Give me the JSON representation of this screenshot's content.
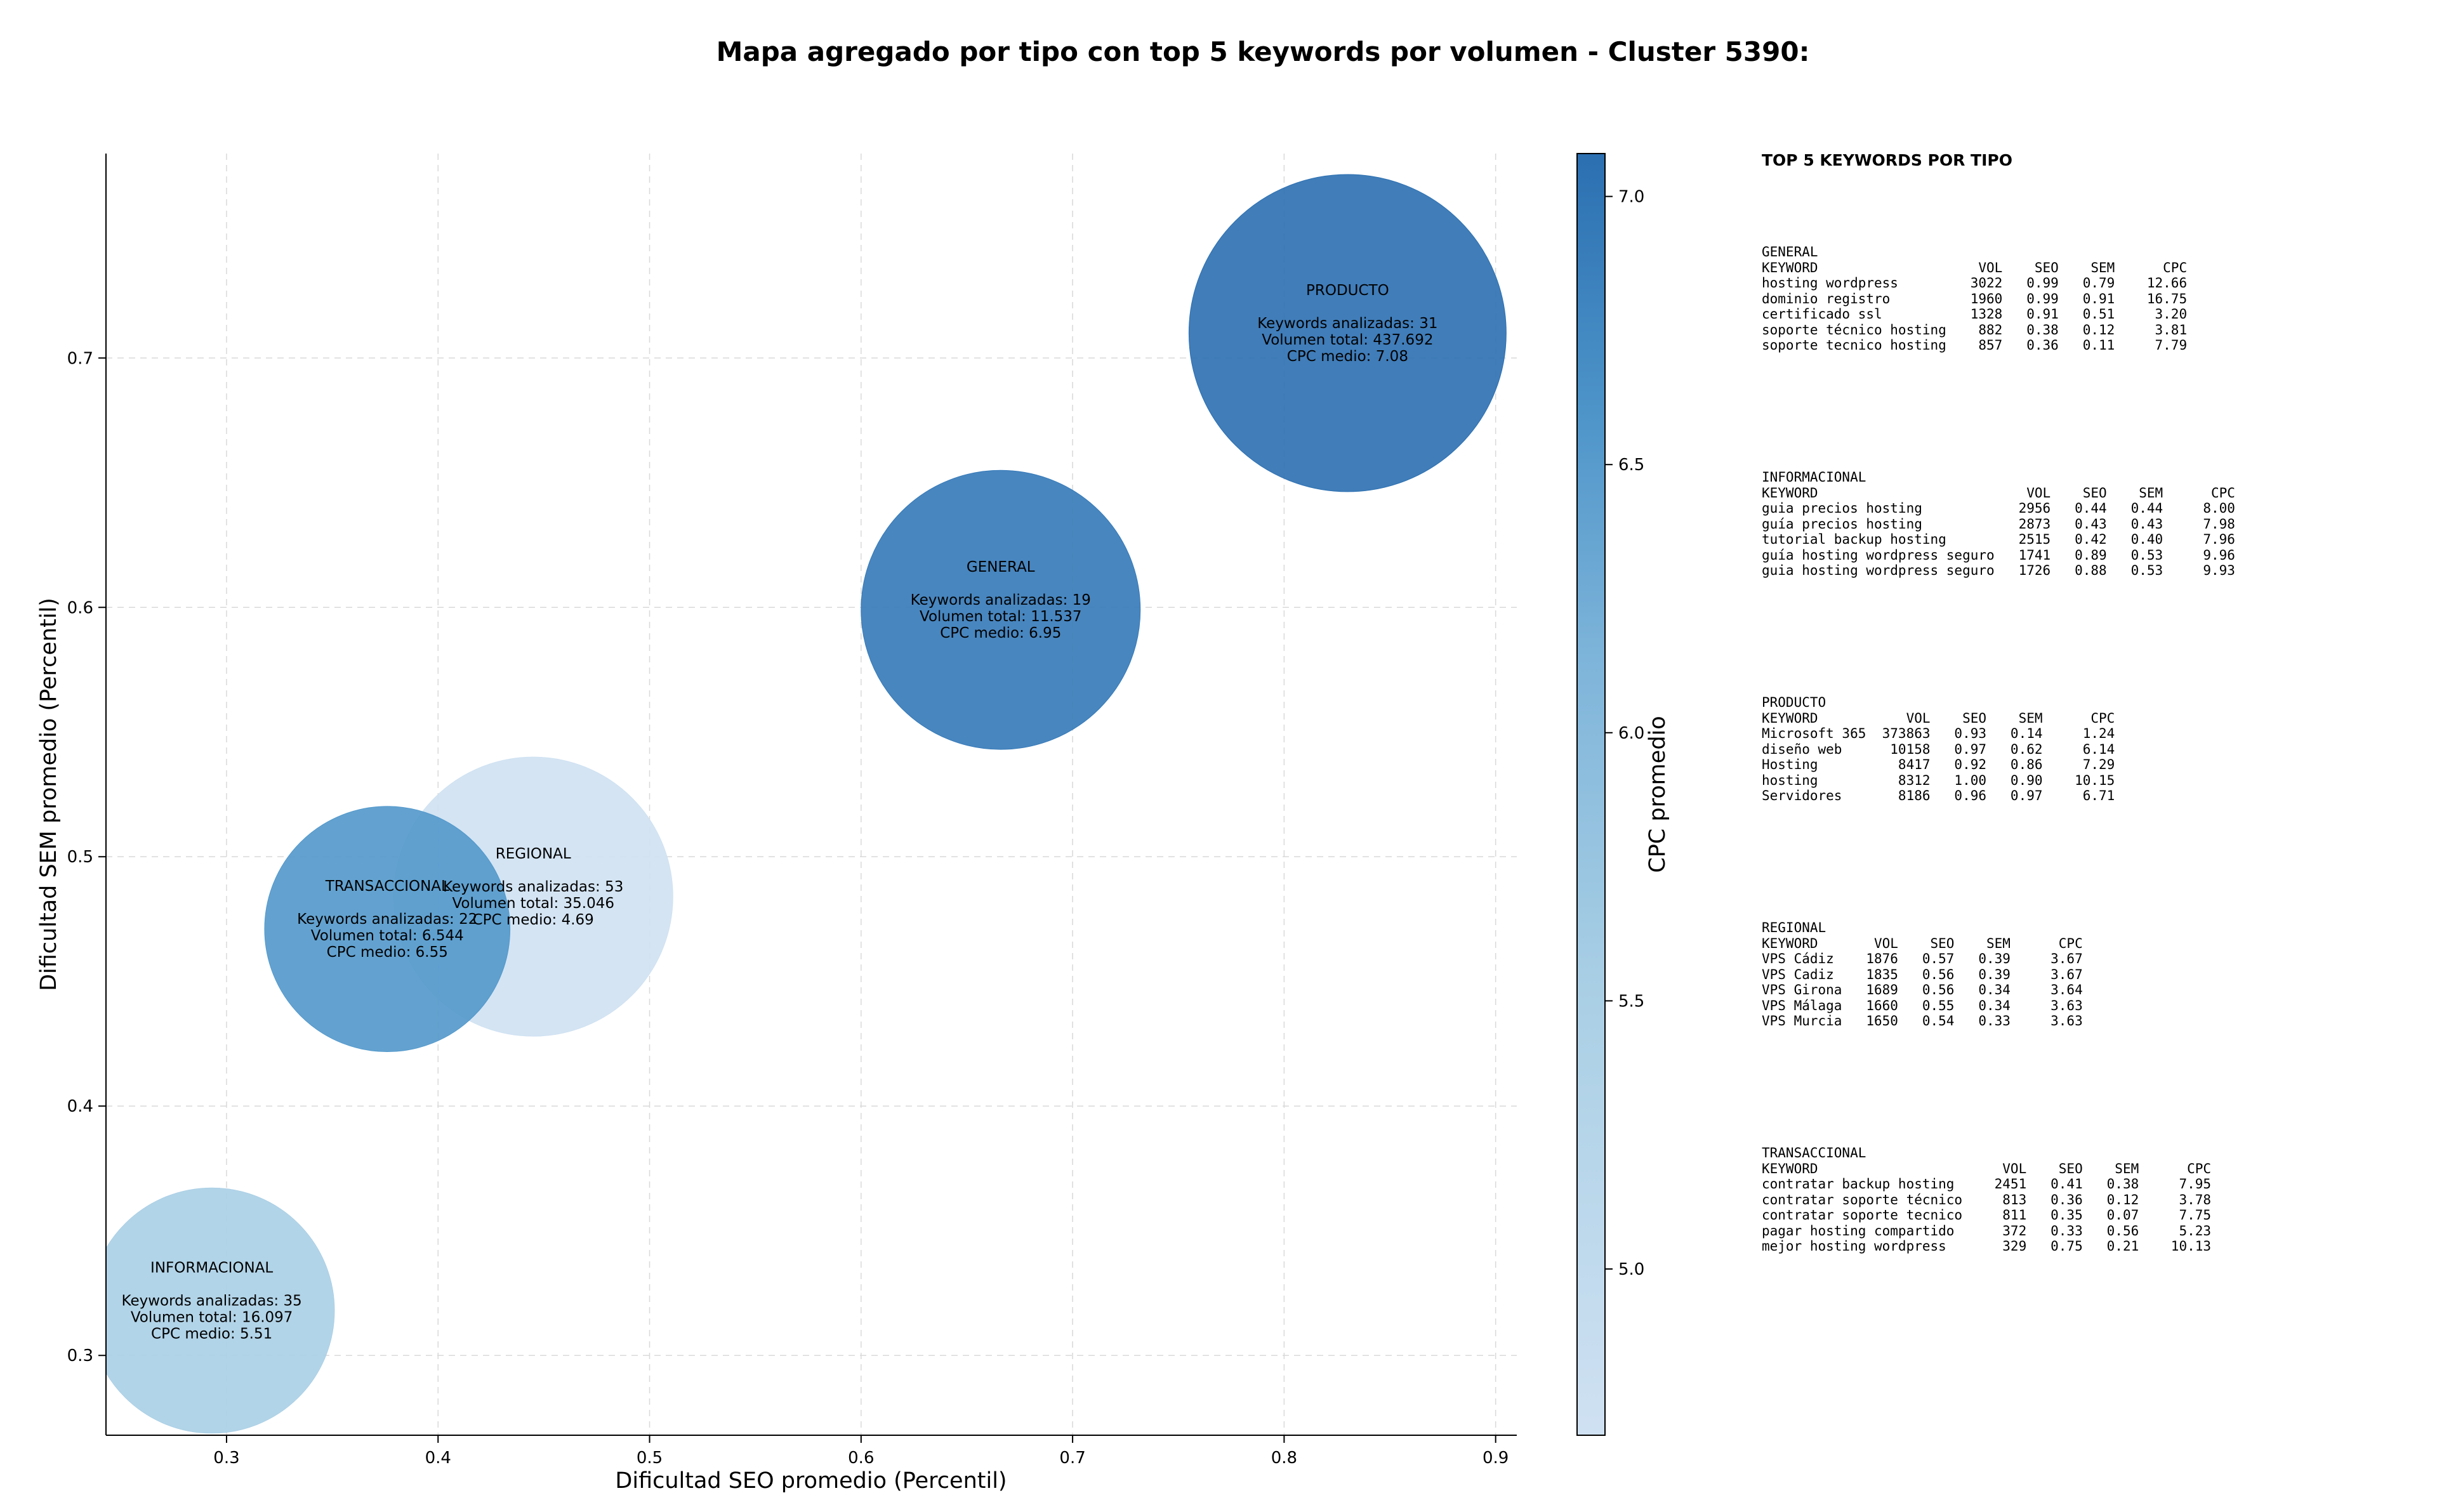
{
  "chart_data": {
    "type": "scatter",
    "title": "Mapa agregado por tipo con top 5 keywords por volumen - Cluster 5390:",
    "xlabel": "Dificultad SEO promedio (Percentil)",
    "ylabel": "Dificultad SEM promedio (Percentil)",
    "xlim": [
      0.243,
      0.91
    ],
    "ylim": [
      0.268,
      0.782
    ],
    "xticks": [
      "0.3",
      "0.4",
      "0.5",
      "0.6",
      "0.7",
      "0.8",
      "0.9"
    ],
    "yticks": [
      "0.3",
      "0.4",
      "0.5",
      "0.6",
      "0.7"
    ],
    "grid": true,
    "colorbar": {
      "label": "CPC promedio",
      "range": [
        4.69,
        7.08
      ],
      "ticks": [
        "5.0",
        "5.5",
        "6.0",
        "6.5",
        "7.0"
      ]
    },
    "points": [
      {
        "name": "REGIONAL",
        "x": 0.445,
        "y": 0.484,
        "kw_line": "Keywords analizadas: 53",
        "vol_line": "Volumen total: 35.046",
        "cpc_line": "CPC medio: 4.69",
        "cpc": 4.69,
        "volume": 35046,
        "radius": 0.066
      },
      {
        "name": "TRANSACCIONAL",
        "x": 0.376,
        "y": 0.471,
        "kw_line": "Keywords analizadas: 22",
        "vol_line": "Volumen total: 6.544",
        "cpc_line": "CPC medio: 6.55",
        "cpc": 6.55,
        "volume": 6544,
        "radius": 0.058
      },
      {
        "name": "INFORMACIONAL",
        "x": 0.293,
        "y": 0.318,
        "kw_line": "Keywords analizadas: 35",
        "vol_line": "Volumen total: 16.097",
        "cpc_line": "CPC medio: 5.51",
        "cpc": 5.51,
        "volume": 16097,
        "radius": 0.058
      },
      {
        "name": "GENERAL",
        "x": 0.666,
        "y": 0.599,
        "kw_line": "Keywords analizadas: 19",
        "vol_line": "Volumen total: 11.537",
        "cpc_line": "CPC medio: 6.95",
        "cpc": 6.95,
        "volume": 11537,
        "radius": 0.066
      },
      {
        "name": "PRODUCTO",
        "x": 0.83,
        "y": 0.71,
        "kw_line": "Keywords analizadas: 31",
        "vol_line": "Volumen total: 437.692",
        "cpc_line": "CPC medio: 7.08",
        "cpc": 7.08,
        "volume": 437692,
        "radius": 0.075
      }
    ]
  },
  "side": {
    "heading": "TOP 5 KEYWORDS POR TIPO",
    "blocks": [
      {
        "text": "GENERAL\nKEYWORD                    VOL    SEO    SEM      CPC\nhosting wordpress         3022   0.99   0.79    12.66\ndominio registro          1960   0.99   0.91    16.75\ncertificado ssl           1328   0.91   0.51     3.20\nsoporte técnico hosting    882   0.38   0.12     3.81\nsoporte tecnico hosting    857   0.36   0.11     7.79"
      },
      {
        "text": "INFORMACIONAL\nKEYWORD                          VOL    SEO    SEM      CPC\nguia precios hosting            2956   0.44   0.44     8.00\nguía precios hosting            2873   0.43   0.43     7.98\ntutorial backup hosting         2515   0.42   0.40     7.96\nguía hosting wordpress seguro   1741   0.89   0.53     9.96\nguia hosting wordpress seguro   1726   0.88   0.53     9.93"
      },
      {
        "text": "PRODUCTO\nKEYWORD           VOL    SEO    SEM      CPC\nMicrosoft 365  373863   0.93   0.14     1.24\ndiseño web      10158   0.97   0.62     6.14\nHosting          8417   0.92   0.86     7.29\nhosting          8312   1.00   0.90    10.15\nServidores       8186   0.96   0.97     6.71"
      },
      {
        "text": "REGIONAL\nKEYWORD       VOL    SEO    SEM      CPC\nVPS Cádiz    1876   0.57   0.39     3.67\nVPS Cadiz    1835   0.56   0.39     3.67\nVPS Girona   1689   0.56   0.34     3.64\nVPS Málaga   1660   0.55   0.34     3.63\nVPS Murcia   1650   0.54   0.33     3.63"
      },
      {
        "text": "TRANSACCIONAL\nKEYWORD                       VOL    SEO    SEM      CPC\ncontratar backup hosting     2451   0.41   0.38     7.95\ncontratar soporte técnico     813   0.36   0.12     3.78\ncontratar soporte tecnico     811   0.35   0.07     7.75\npagar hosting compartido      372   0.33   0.56     5.23\nmejor hosting wordpress       329   0.75   0.21    10.13"
      }
    ]
  }
}
